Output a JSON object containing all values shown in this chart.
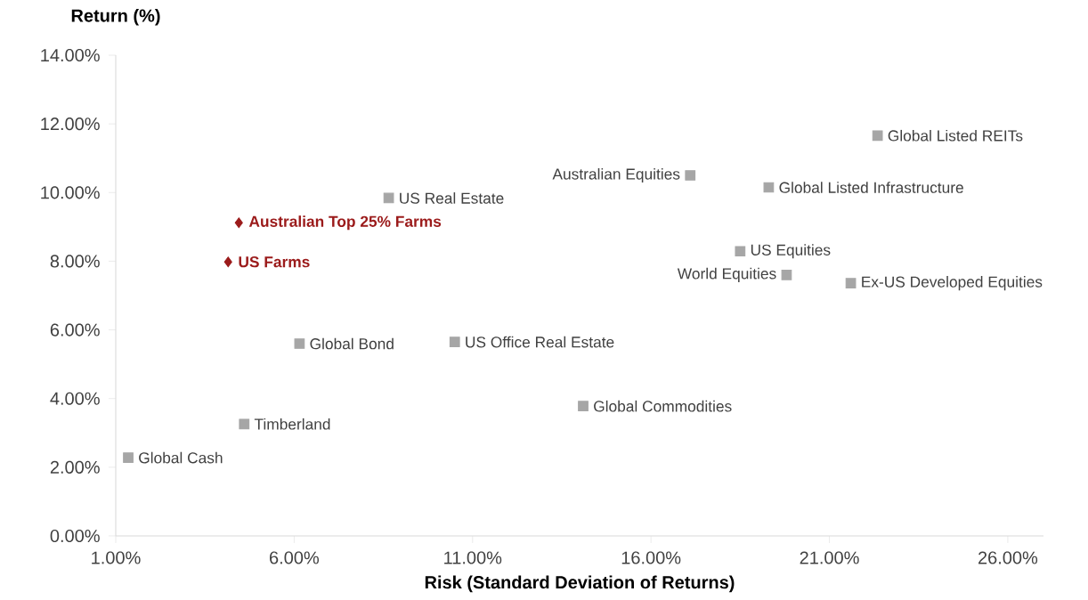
{
  "chart_data": {
    "type": "scatter",
    "xlabel": "Risk (Standard Deviation of Returns)",
    "ylabel": "Return (%)",
    "xlim": [
      1,
      27
    ],
    "ylim": [
      0,
      14
    ],
    "xticks": [
      {
        "value": 1,
        "label": "1.00%"
      },
      {
        "value": 6,
        "label": "6.00%"
      },
      {
        "value": 11,
        "label": "11.00%"
      },
      {
        "value": 16,
        "label": "16.00%"
      },
      {
        "value": 21,
        "label": "21.00%"
      },
      {
        "value": 26,
        "label": "26.00%"
      }
    ],
    "yticks": [
      {
        "value": 0,
        "label": "0.00%"
      },
      {
        "value": 2,
        "label": "2.00%"
      },
      {
        "value": 4,
        "label": "4.00%"
      },
      {
        "value": 6,
        "label": "6.00%"
      },
      {
        "value": 8,
        "label": "8.00%"
      },
      {
        "value": 10,
        "label": "10.00%"
      },
      {
        "value": 12,
        "label": "12.00%"
      },
      {
        "value": 14,
        "label": "14.00%"
      }
    ],
    "series": [
      {
        "color": "#a6a6a6",
        "marker": "square",
        "x": [
          1.35,
          4.6,
          6.15,
          10.5,
          14.1,
          8.65,
          17.1,
          19.3,
          22.35,
          18.5,
          19.8,
          21.6
        ],
        "values": [
          2.28,
          3.26,
          5.6,
          5.65,
          3.78,
          9.84,
          10.5,
          10.15,
          11.66,
          8.29,
          7.6,
          7.36
        ]
      },
      {
        "color": "#9b1b1b",
        "marker": "diamond",
        "x": [
          4.45,
          4.15
        ],
        "values": [
          9.12,
          7.98
        ]
      }
    ],
    "annotations": [
      {
        "text": "Global Cash",
        "x": 1.35,
        "y": 2.28
      },
      {
        "text": "Timberland",
        "x": 4.6,
        "y": 3.26
      },
      {
        "text": "Global Bond",
        "x": 6.15,
        "y": 5.6
      },
      {
        "text": "US Office Real Estate",
        "x": 10.5,
        "y": 5.65
      },
      {
        "text": "Global Commodities",
        "x": 14.1,
        "y": 3.78
      },
      {
        "text": "US Real Estate",
        "x": 8.65,
        "y": 9.84
      },
      {
        "text": "Australian Equities",
        "x": 17.1,
        "y": 10.5
      },
      {
        "text": "Global Listed Infrastructure",
        "x": 19.3,
        "y": 10.15
      },
      {
        "text": "Global Listed REITs",
        "x": 22.35,
        "y": 11.66
      },
      {
        "text": "US Equities",
        "x": 18.5,
        "y": 8.29
      },
      {
        "text": "World Equities",
        "x": 19.8,
        "y": 7.6
      },
      {
        "text": "Ex-US Developed Equities",
        "x": 21.6,
        "y": 7.36
      },
      {
        "text": "Australian Top 25% Farms",
        "x": 4.45,
        "y": 9.12
      },
      {
        "text": "US Farms",
        "x": 4.15,
        "y": 7.98
      }
    ]
  }
}
